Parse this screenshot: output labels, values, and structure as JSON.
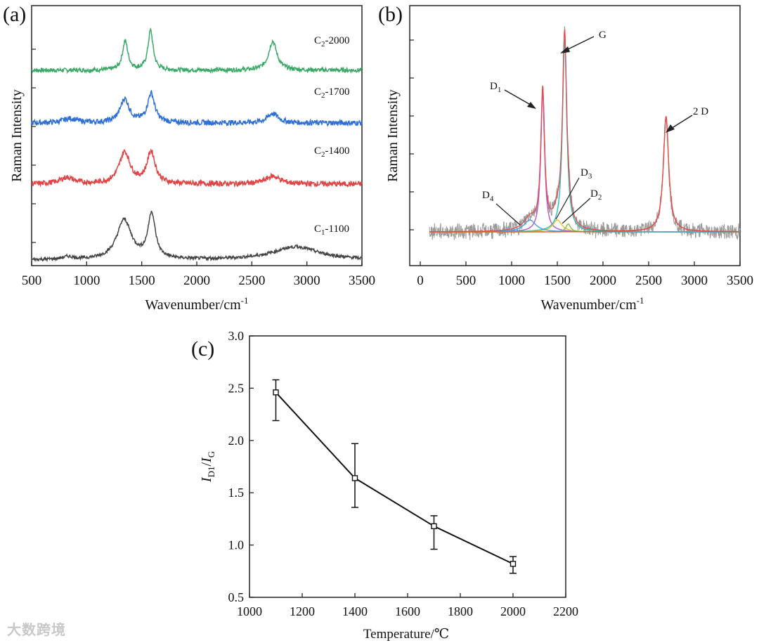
{
  "figure": {
    "watermark": "大数跨境"
  },
  "chart_data": [
    {
      "panel": "(a)",
      "type": "line",
      "xlabel": "Wavenumber/cm",
      "xlabel_sup": "-1",
      "ylabel": "Raman Intensity",
      "xlim": [
        500,
        3500
      ],
      "xticks": [
        "500",
        "1000",
        "1500",
        "2000",
        "2500",
        "3000",
        "3500"
      ],
      "series": [
        {
          "label_main": "C",
          "label_sub": "2",
          "label_rest": "-2000",
          "color": "#3aa866",
          "offset": 3.0,
          "peaks": [
            [
              1350,
              0.55,
              30
            ],
            [
              1580,
              0.75,
              28
            ],
            [
              2690,
              0.55,
              45
            ]
          ],
          "noise": 0.04
        },
        {
          "label_main": "C",
          "label_sub": "2",
          "label_rest": "-1700",
          "color": "#2f6fd6",
          "offset": 2.0,
          "peaks": [
            [
              1345,
              0.45,
              50
            ],
            [
              1585,
              0.55,
              40
            ],
            [
              2690,
              0.18,
              60
            ],
            [
              850,
              0.08,
              80
            ]
          ],
          "noise": 0.05
        },
        {
          "label_main": "C",
          "label_sub": "2",
          "label_rest": "-1400",
          "color": "#e04444",
          "offset": 1.0,
          "peaks": [
            [
              1345,
              0.6,
              60
            ],
            [
              1585,
              0.6,
              45
            ],
            [
              2690,
              0.15,
              80
            ],
            [
              820,
              0.12,
              80
            ]
          ],
          "noise": 0.05
        },
        {
          "label_main": "C",
          "label_sub": "1",
          "label_rest": "-1100",
          "color": "#444444",
          "offset": 0.0,
          "peaks": [
            [
              1340,
              0.75,
              80
            ],
            [
              1590,
              0.85,
              40
            ],
            [
              2900,
              0.25,
              250
            ],
            [
              830,
              0.05,
              60
            ]
          ],
          "noise": 0.03
        }
      ]
    },
    {
      "panel": "(b)",
      "type": "line",
      "xlabel": "Wavenumber/cm",
      "xlabel_sup": "-1",
      "ylabel": "Raman Intensity",
      "xlim": [
        0,
        3500
      ],
      "xticks": [
        "0",
        "500",
        "1000",
        "1500",
        "2000",
        "2500",
        "3000",
        "3500"
      ],
      "components": [
        {
          "name": "D1",
          "center": 1340,
          "height": 0.7,
          "width": 25,
          "color": "#c050d0"
        },
        {
          "name": "G",
          "center": 1580,
          "height": 0.97,
          "width": 28,
          "color": "#30b8b8"
        },
        {
          "name": "D3",
          "center": 1500,
          "height": 0.06,
          "width": 60,
          "color": "#e0c030"
        },
        {
          "name": "D2",
          "center": 1620,
          "height": 0.04,
          "width": 30,
          "color": "#80c040"
        },
        {
          "name": "D4",
          "center": 1200,
          "height": 0.06,
          "width": 80,
          "color": "#4aa0e0"
        },
        {
          "name": "2D",
          "center": 2690,
          "height": 0.58,
          "width": 35,
          "color": "#e06030"
        }
      ],
      "annotations": [
        {
          "main": "G",
          "sub": ""
        },
        {
          "main": "D",
          "sub": "1"
        },
        {
          "main": "2 D",
          "sub": ""
        },
        {
          "main": "D",
          "sub": "3"
        },
        {
          "main": "D",
          "sub": "2"
        },
        {
          "main": "D",
          "sub": "4"
        }
      ]
    },
    {
      "panel": "(c)",
      "type": "line",
      "xlabel": "Temperature/℃",
      "ylabel_main": "I",
      "ylabel_sub1": "D1",
      "ylabel_slash": "/",
      "ylabel_main2": "I",
      "ylabel_sub2": "G",
      "xlim": [
        1000,
        2200
      ],
      "ylim": [
        0.5,
        3.0
      ],
      "xticks": [
        "1000",
        "1200",
        "1400",
        "1600",
        "1800",
        "2000",
        "2200"
      ],
      "yticks": [
        "0.5",
        "1.0",
        "1.5",
        "2.0",
        "2.5",
        "3.0"
      ],
      "x": [
        1100,
        1400,
        1700,
        2000
      ],
      "y": [
        2.46,
        1.64,
        1.18,
        0.82
      ],
      "err_low": [
        2.19,
        1.36,
        0.96,
        0.73
      ],
      "err_high": [
        2.58,
        1.97,
        1.28,
        0.89
      ]
    }
  ]
}
